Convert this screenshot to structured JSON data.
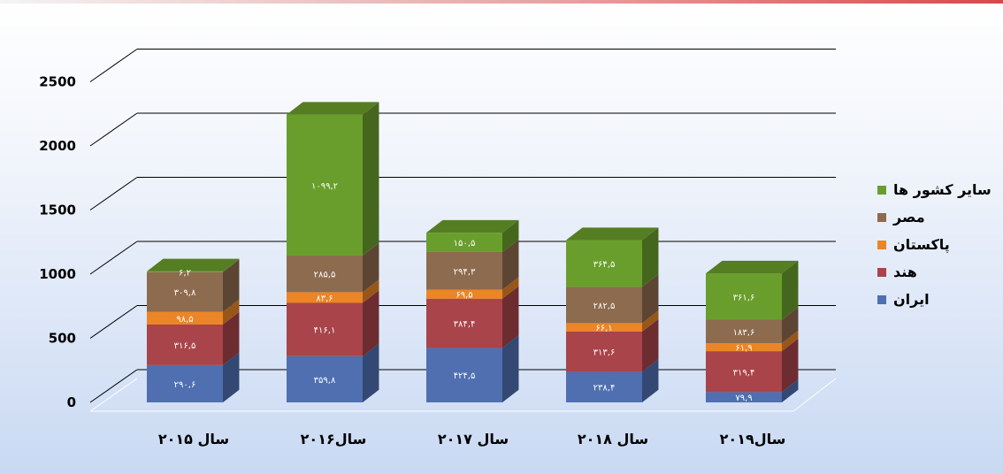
{
  "chart_data": {
    "type": "bar",
    "stacked": true,
    "three_d": true,
    "categories": [
      "سال ۲۰۱۵",
      "سال۲۰۱۶",
      "سال ۲۰۱۷",
      "سال ۲۰۱۸",
      "سال۲۰۱۹"
    ],
    "series": [
      {
        "name": "ایران",
        "color": "#4f6fb0",
        "values": [
          290.6,
          359.8,
          424.5,
          238.4,
          79.9
        ],
        "labels": [
          "۲۹۰,۶",
          "۳۵۹,۸",
          "۴۲۴,۵",
          "۲۳۸,۴",
          "۷۹,۹"
        ]
      },
      {
        "name": "هند",
        "color": "#a8444a",
        "values": [
          316.5,
          416.1,
          384.4,
          313.6,
          319.4
        ],
        "labels": [
          "۳۱۶,۵",
          "۴۱۶,۱",
          "۳۸۴,۴",
          "۳۱۳,۶",
          "۳۱۹,۴"
        ]
      },
      {
        "name": "پاکستان",
        "color": "#ec8526",
        "values": [
          98.5,
          83.6,
          69.5,
          66.1,
          61.9
        ],
        "labels": [
          "۹۸,۵",
          "۸۳,۶",
          "۶۹,۵",
          "۶۶,۱",
          "۶۱,۹"
        ]
      },
      {
        "name": "مصر",
        "color": "#8d6b4f",
        "values": [
          309.8,
          285.5,
          294.3,
          282.5,
          183.6
        ],
        "labels": [
          "۳۰۹,۸",
          "۲۸۵,۵",
          "۲۹۴,۳",
          "۲۸۲,۵",
          "۱۸۳,۶"
        ]
      },
      {
        "name": "سایر کشور ها",
        "color": "#6a9e2c",
        "values": [
          6.2,
          1099.2,
          150.5,
          364.5,
          361.6
        ],
        "labels": [
          "۶,۲",
          "۱۰۹۹,۲",
          "۱۵۰,۵",
          "۳۶۴,۵",
          "۳۶۱,۶"
        ]
      }
    ],
    "yticks": [
      "0",
      "500",
      "1000",
      "1500",
      "2000",
      "2500"
    ],
    "ylim": [
      0,
      2500
    ],
    "grid": true,
    "legend_position": "right"
  }
}
